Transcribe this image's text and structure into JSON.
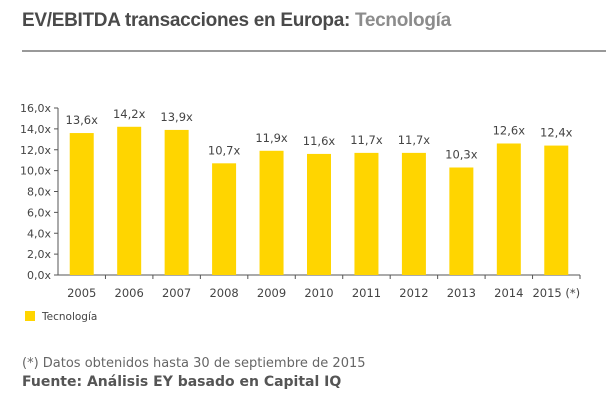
{
  "title": {
    "main": "EV/EBITDA transacciones en Europa:",
    "sub": "Tecnología"
  },
  "chart_data": {
    "type": "bar",
    "categories": [
      "2005",
      "2006",
      "2007",
      "2008",
      "2009",
      "2010",
      "2011",
      "2012",
      "2013",
      "2014",
      "2015 (*)"
    ],
    "series": [
      {
        "name": "Tecnología",
        "values": [
          13.6,
          14.2,
          13.9,
          10.7,
          11.9,
          11.6,
          11.7,
          11.7,
          10.3,
          12.6,
          12.4
        ]
      }
    ],
    "data_labels": [
      "13,6x",
      "14,2x",
      "13,9x",
      "10,7x",
      "11,9x",
      "11,6x",
      "11,7x",
      "11,7x",
      "10,3x",
      "12,6x",
      "12,4x"
    ],
    "yticks": [
      "0,0x",
      "2,0x",
      "4,0x",
      "6,0x",
      "8,0x",
      "10,0x",
      "12,0x",
      "14,0x",
      "16,0x"
    ],
    "ylim": [
      0,
      16
    ],
    "grid": false,
    "legend": "bottom-left",
    "color": "#FFD500"
  },
  "footnote": "(*) Datos obtenidos hasta 30 de septiembre de 2015",
  "source": "Fuente: Análisis EY basado en Capital IQ"
}
